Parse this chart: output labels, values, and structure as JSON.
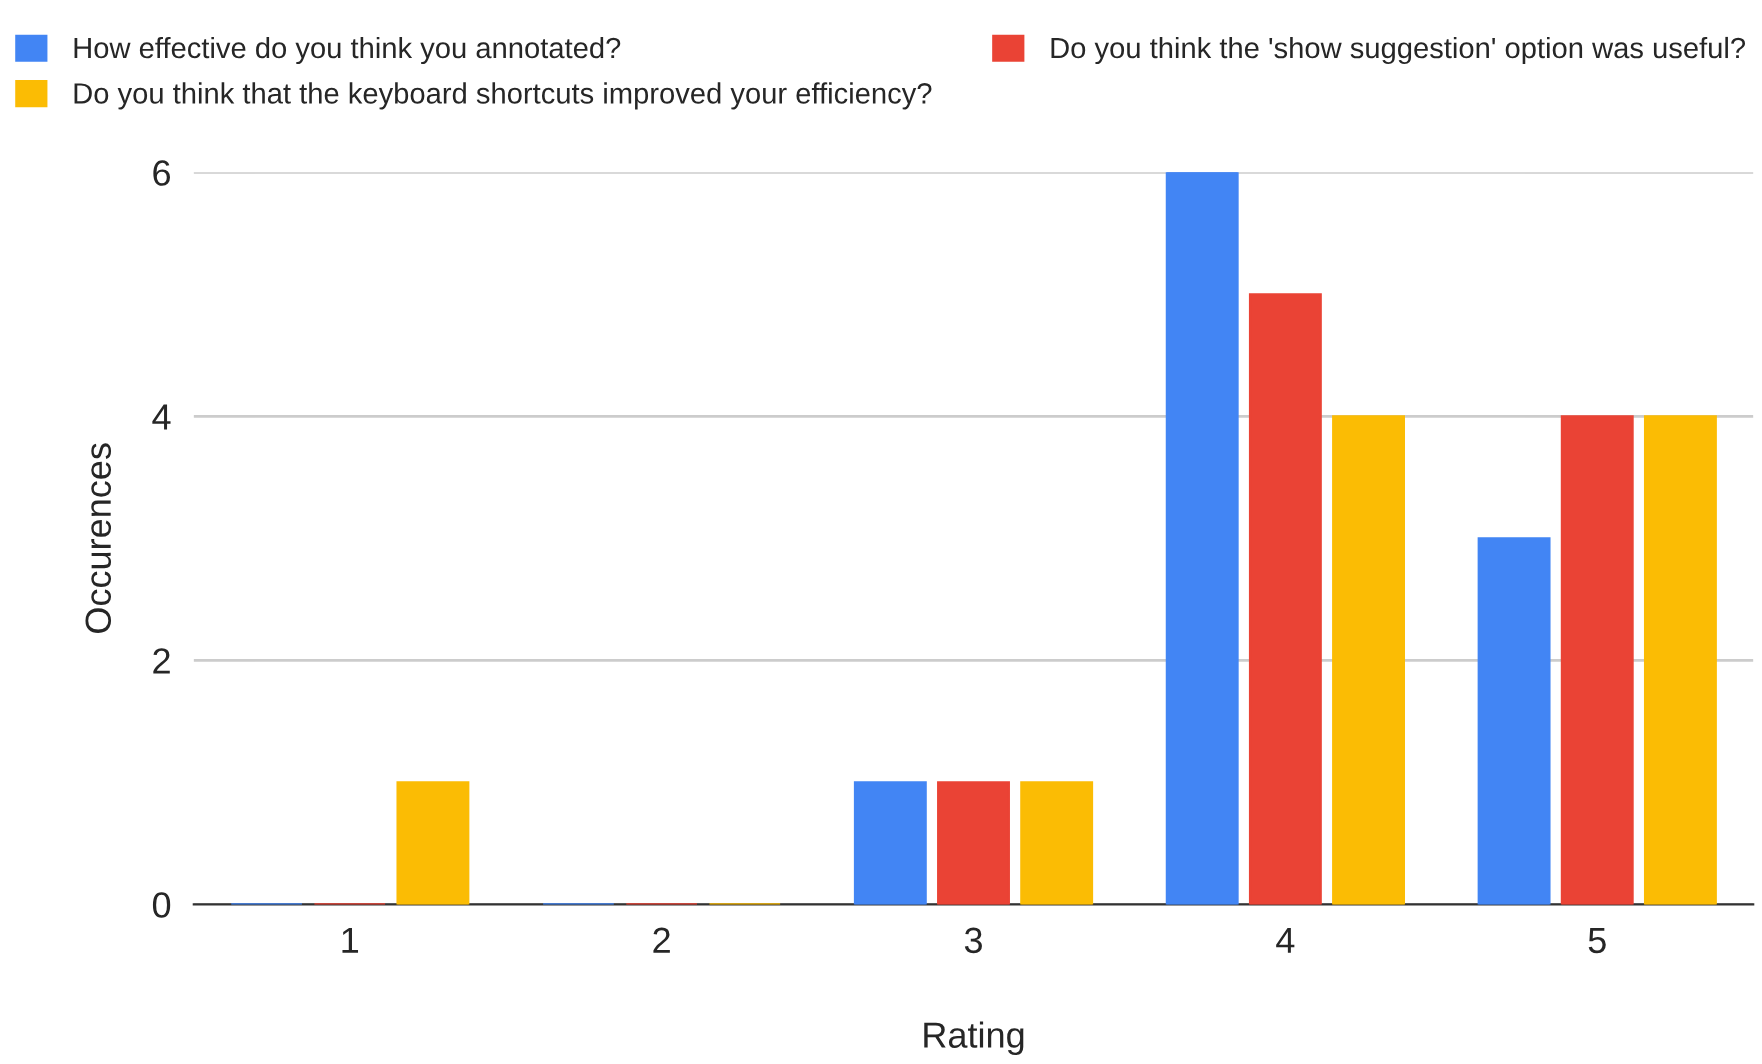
{
  "chart_data": {
    "type": "bar",
    "xlabel": "Rating",
    "ylabel": "Occurences",
    "categories": [
      "1",
      "2",
      "3",
      "4",
      "5"
    ],
    "series": [
      {
        "name": "How effective do you think you annotated?",
        "color": "#4285f4",
        "values": [
          0,
          0,
          1,
          6,
          3
        ]
      },
      {
        "name": "Do you think the 'show suggestion' option was useful?",
        "color": "#ea4335",
        "values": [
          0,
          0,
          1,
          5,
          4
        ]
      },
      {
        "name": "Do you think that the keyboard shortcuts improved your efficiency?",
        "color": "#fbbc04",
        "values": [
          1,
          0,
          1,
          4,
          4
        ]
      }
    ],
    "ylim": [
      0,
      6
    ],
    "yticks": [
      0,
      2,
      4,
      6
    ],
    "grid": "y",
    "legend": "top"
  }
}
